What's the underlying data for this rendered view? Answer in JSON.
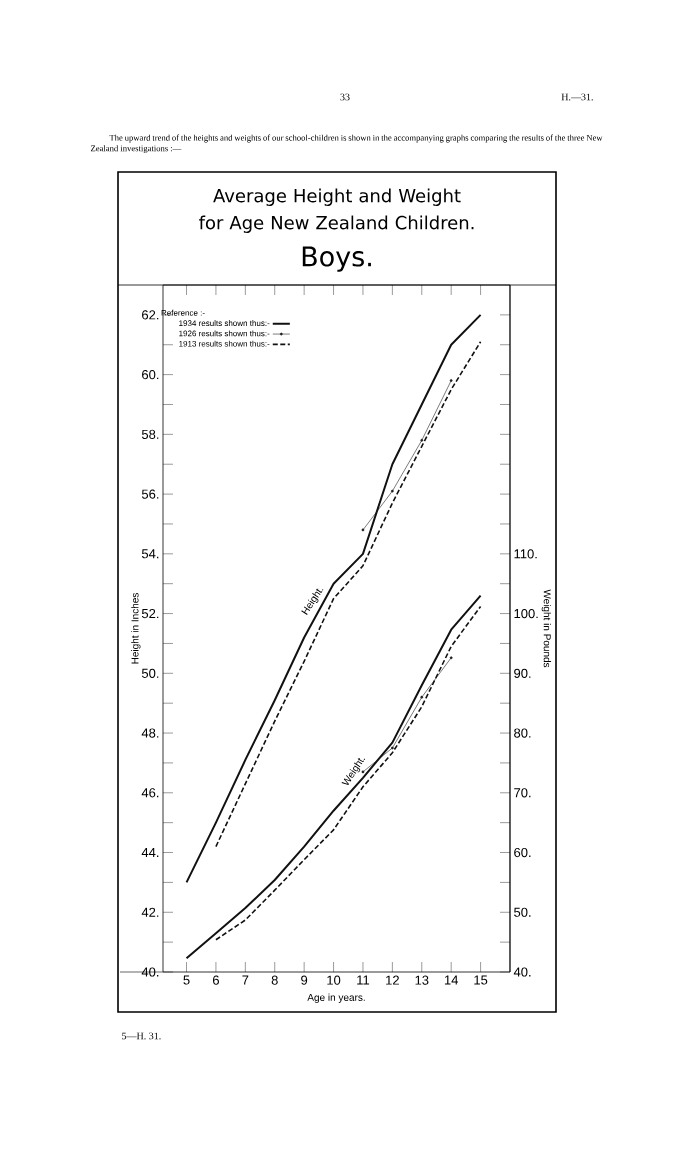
{
  "chart_data": {
    "type": "line",
    "title": "Average Height and Weight for Age New Zealand Children.",
    "subtitle": "Boys.",
    "xlabel": "Age in years.",
    "ylabel": "Height in Inches",
    "y2label": "Weight in Pounds",
    "legend_title": "Reference :-",
    "legend": "top left",
    "annotations": [
      "33",
      "H.—31.",
      "The upward trend of the heights and weights of our school-children is shown in the accompanying graphs comparing the results of the three New Zealand investigations :—",
      "5—H. 31.",
      {
        "text": "Height.",
        "x": 9.5,
        "y": 52.3
      },
      {
        "text": "Weight.",
        "x": 10.9,
        "y": 46.6
      }
    ],
    "x": [
      5,
      6,
      7,
      8,
      9,
      10,
      11,
      12,
      13,
      14,
      15
    ],
    "xlim": [
      4.2,
      16
    ],
    "ylim": [
      40,
      63
    ],
    "y2lim": [
      40,
      155
    ],
    "xticks": [
      5,
      6,
      7,
      8,
      9,
      10,
      11,
      12,
      13,
      14,
      15
    ],
    "yticks": [
      {
        "value": 40,
        "label": "40."
      },
      {
        "value": 41,
        "label": null
      },
      {
        "value": 42,
        "label": "42."
      },
      {
        "value": 43,
        "label": null
      },
      {
        "value": 44,
        "label": "44."
      },
      {
        "value": 45,
        "label": null
      },
      {
        "value": 46,
        "label": "46."
      },
      {
        "value": 47,
        "label": null
      },
      {
        "value": 48,
        "label": "48."
      },
      {
        "value": 49,
        "label": null
      },
      {
        "value": 50,
        "label": "50."
      },
      {
        "value": 51,
        "label": null
      },
      {
        "value": 52,
        "label": "52."
      },
      {
        "value": 53,
        "label": null
      },
      {
        "value": 54,
        "label": "54."
      },
      {
        "value": 55,
        "label": null
      },
      {
        "value": 56,
        "label": "56."
      },
      {
        "value": 57,
        "label": null
      },
      {
        "value": 58,
        "label": "58."
      },
      {
        "value": 59,
        "label": null
      },
      {
        "value": 60,
        "label": "60."
      },
      {
        "value": 61,
        "label": null
      },
      {
        "value": 62,
        "label": "62."
      }
    ],
    "y2ticks": [
      {
        "value": 40,
        "label": "40."
      },
      {
        "value": 45,
        "label": null
      },
      {
        "value": 50,
        "label": "50."
      },
      {
        "value": 55,
        "label": null
      },
      {
        "value": 60,
        "label": "60."
      },
      {
        "value": 65,
        "label": null
      },
      {
        "value": 70,
        "label": "70."
      },
      {
        "value": 75,
        "label": null
      },
      {
        "value": 80,
        "label": "80."
      },
      {
        "value": 85,
        "label": null
      },
      {
        "value": 90,
        "label": "90."
      },
      {
        "value": 95,
        "label": null
      },
      {
        "value": 100,
        "label": "100."
      },
      {
        "value": 105,
        "label": null
      },
      {
        "value": 110,
        "label": "110."
      },
      {
        "value": 115,
        "label": null
      },
      {
        "value": 120,
        "label": null
      },
      {
        "value": 125,
        "label": null
      },
      {
        "value": 130,
        "label": null
      },
      {
        "value": 135,
        "label": null
      },
      {
        "value": 140,
        "label": null
      },
      {
        "value": 145,
        "label": null
      },
      {
        "value": 150,
        "label": null
      }
    ],
    "series": [
      {
        "name": "1934 results shown thus:-",
        "color": "#111111",
        "line_style": "solid",
        "marker": "none",
        "values": [
          43.0,
          45.0,
          47.1,
          49.1,
          51.2,
          53.0,
          54.0,
          57.0,
          59.0,
          61.0,
          62.0
        ]
      },
      {
        "name": "1926 results shown thus:-",
        "color": "#222222",
        "line_style": "solid",
        "marker": "circle",
        "values": [
          null,
          null,
          null,
          null,
          null,
          null,
          54.8,
          56.1,
          57.8,
          59.8,
          null
        ]
      },
      {
        "name": "1913 results shown thus:-",
        "color": "#111111",
        "line_style": "dashed",
        "marker": "none",
        "values": [
          null,
          44.2,
          46.3,
          48.4,
          50.4,
          52.5,
          53.6,
          55.7,
          57.6,
          59.5,
          61.1
        ]
      },
      {
        "color": "#111111",
        "line_style": "solid",
        "marker": "none",
        "axis": "y2",
        "values": [
          42.3,
          46.5,
          50.7,
          55.4,
          61.0,
          67.0,
          72.5,
          78.4,
          88.0,
          97.3,
          103.0
        ]
      },
      {
        "color": "#222222",
        "line_style": "solid",
        "marker": "circle",
        "axis": "y2",
        "values": [
          null,
          null,
          null,
          null,
          null,
          null,
          73.5,
          77.5,
          86.0,
          92.6,
          null
        ]
      },
      {
        "color": "#111111",
        "line_style": "dashed",
        "marker": "none",
        "axis": "y2",
        "values": [
          null,
          45.4,
          48.7,
          53.7,
          58.8,
          63.8,
          71.0,
          76.7,
          84.4,
          94.5,
          101.2
        ]
      }
    ]
  }
}
